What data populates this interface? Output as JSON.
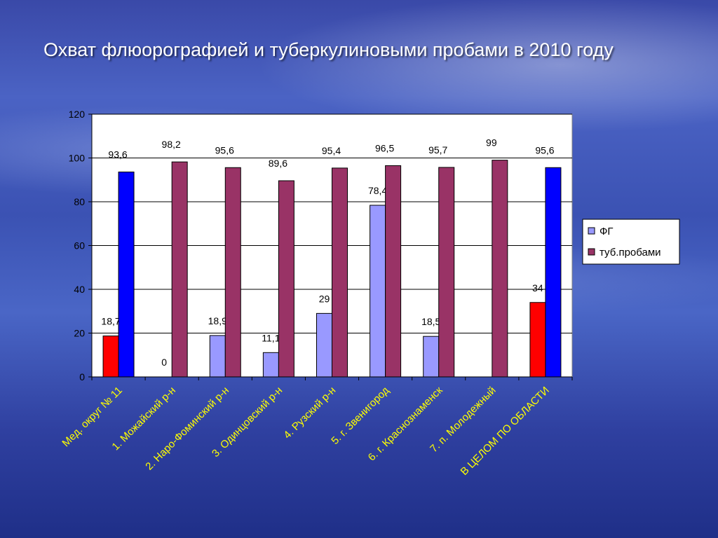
{
  "slide": {
    "title": "Охват флюорографией и туберкулиновыми пробами в 2010 году"
  },
  "colors": {
    "fg": "#9999ff",
    "tub": "#993366",
    "fg_highlight_total": "#ff0000",
    "tub_highlight_total": "#0000ff",
    "category_label": "#ffff00"
  },
  "chart_data": {
    "type": "bar",
    "title": "",
    "xlabel": "",
    "ylabel": "",
    "ylim": [
      0,
      120
    ],
    "yticks": [
      0,
      20,
      40,
      60,
      80,
      100,
      120
    ],
    "grid": true,
    "legend_position": "right",
    "categories": [
      "Мед. округ № 11",
      "1. Можайский р-н",
      "2. Наро-Фоминский р-н",
      "3. Одинцовский р-н",
      "4. Рузский р-н",
      "5. г. Звенигород",
      "6. г. Краснознаменск",
      "7. п. Молодежный",
      "В ЦЕЛОМ ПО ОБЛАСТИ"
    ],
    "series": [
      {
        "name": "ФГ",
        "values": [
          18.7,
          0,
          18.9,
          11.1,
          29,
          78.4,
          18.5,
          null,
          34
        ],
        "labels": [
          "18,7",
          "0",
          "18,9",
          "11,1",
          "29",
          "78,4",
          "18,5",
          "",
          "34"
        ]
      },
      {
        "name": "туб.пробами",
        "values": [
          93.6,
          98.2,
          95.6,
          89.6,
          95.4,
          96.5,
          95.7,
          99,
          95.6
        ],
        "labels": [
          "93,6",
          "98,2",
          "95,6",
          "89,6",
          "95,4",
          "96,5",
          "95,7",
          "99",
          "95,6"
        ]
      }
    ]
  }
}
